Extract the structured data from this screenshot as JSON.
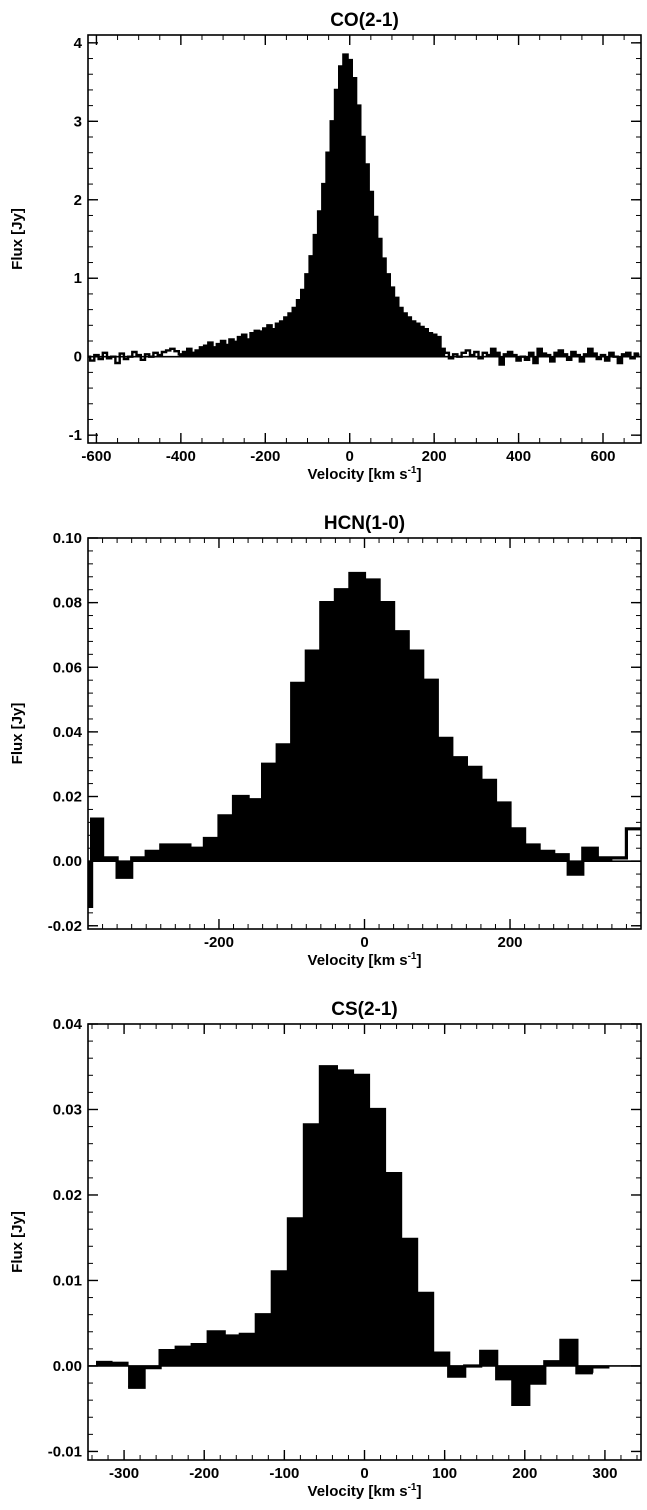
{
  "colors": {
    "inner_fill": "#c2e4ee",
    "wing_fill": "#6495ed",
    "negative_fill": "#ffff33",
    "outline": "#000000"
  },
  "chart_data": [
    {
      "type": "step",
      "title": "CO(2-1)",
      "xlabel": "Velocity [km s",
      "xlabel_sup": "-1",
      "xlabel_end": "]",
      "ylabel": "Flux [Jy]",
      "xlim": [
        -620,
        690
      ],
      "ylim": [
        -1.1,
        4.1
      ],
      "xticks": [
        -600,
        -400,
        -200,
        0,
        200,
        400,
        600
      ],
      "yticks": [
        -1,
        0,
        1,
        2,
        3,
        4
      ],
      "xminor": 50,
      "yminor": 0.2,
      "tick_decimals": 0,
      "inner_range": [
        -90,
        90
      ],
      "wing_range": [
        -330,
        220
      ],
      "negative_ranges": [
        [
          -400,
          -320
        ],
        [
          340,
          690
        ]
      ],
      "series": [
        {
          "x": [
            -620,
            -610,
            -600,
            -590,
            -580,
            -570,
            -560,
            -550,
            -540,
            -530,
            -520,
            -510,
            -500,
            -490,
            -480,
            -470,
            -460,
            -450,
            -440,
            -430,
            -420,
            -410,
            -400,
            -390,
            -380,
            -370,
            -360,
            -350,
            -340,
            -330,
            -320,
            -310,
            -300,
            -290,
            -280,
            -270,
            -260,
            -250,
            -240,
            -230,
            -220,
            -210,
            -200,
            -190,
            -180,
            -170,
            -160,
            -150,
            -140,
            -130,
            -120,
            -110,
            -100,
            -90,
            -80,
            -70,
            -60,
            -50,
            -40,
            -30,
            -20,
            -10,
            0,
            10,
            20,
            30,
            40,
            50,
            60,
            70,
            80,
            90,
            100,
            110,
            120,
            130,
            140,
            150,
            160,
            170,
            180,
            190,
            200,
            210,
            220,
            230,
            240,
            250,
            260,
            270,
            280,
            290,
            300,
            310,
            320,
            330,
            340,
            350,
            360,
            370,
            380,
            390,
            400,
            410,
            420,
            430,
            440,
            450,
            460,
            470,
            480,
            490,
            500,
            510,
            520,
            530,
            540,
            550,
            560,
            570,
            580,
            590,
            600,
            610,
            620,
            630,
            640,
            650,
            660,
            670,
            680
          ],
          "values": [
            0.0,
            -0.05,
            0.02,
            -0.03,
            0.05,
            -0.02,
            0.0,
            -0.08,
            0.04,
            -0.03,
            0.0,
            0.06,
            0.02,
            -0.04,
            0.03,
            0.0,
            0.05,
            0.02,
            0.06,
            0.08,
            0.1,
            0.07,
            0.03,
            0.06,
            0.1,
            0.05,
            0.08,
            0.12,
            0.14,
            0.18,
            0.12,
            0.16,
            0.2,
            0.15,
            0.22,
            0.19,
            0.25,
            0.28,
            0.22,
            0.3,
            0.33,
            0.32,
            0.36,
            0.4,
            0.35,
            0.42,
            0.45,
            0.5,
            0.55,
            0.62,
            0.72,
            0.85,
            1.05,
            1.28,
            1.55,
            1.85,
            2.2,
            2.6,
            3.0,
            3.4,
            3.7,
            3.85,
            3.78,
            3.55,
            3.2,
            2.8,
            2.45,
            2.1,
            1.78,
            1.5,
            1.25,
            1.05,
            0.88,
            0.75,
            0.62,
            0.55,
            0.5,
            0.45,
            0.42,
            0.38,
            0.35,
            0.3,
            0.28,
            0.25,
            0.1,
            0.05,
            -0.02,
            0.03,
            0.0,
            0.05,
            0.08,
            0.02,
            0.06,
            -0.02,
            0.05,
            0.02,
            0.1,
            0.05,
            -0.1,
            0.03,
            0.06,
            0.02,
            -0.05,
            0.0,
            -0.04,
            0.05,
            -0.08,
            0.1,
            0.04,
            0.02,
            -0.06,
            0.05,
            0.08,
            0.03,
            -0.04,
            0.06,
            0.02,
            -0.06,
            0.03,
            0.1,
            0.04,
            -0.03,
            0.02,
            -0.05,
            0.05,
            0.0,
            -0.08,
            0.03,
            0.05,
            -0.02,
            0.04
          ]
        }
      ]
    },
    {
      "type": "step",
      "title": "HCN(1-0)",
      "xlabel": "Velocity [km s",
      "xlabel_sup": "-1",
      "xlabel_end": "]",
      "ylabel": "Flux [Jy]",
      "xlim": [
        -380,
        380
      ],
      "ylim": [
        -0.021,
        0.1
      ],
      "xticks": [
        -200,
        0,
        200
      ],
      "yticks": [
        -0.02,
        0.0,
        0.02,
        0.04,
        0.06,
        0.08,
        0.1
      ],
      "xminor": 20,
      "yminor": 0.004,
      "tick_decimals": 2,
      "inner_range": [
        -92,
        92
      ],
      "wing_range": [
        -340,
        330
      ],
      "negative_ranges": [
        [
          -380,
          -340
        ]
      ],
      "series": [
        {
          "x": [
            -380,
            -370,
            -350,
            -330,
            -310,
            -290,
            -270,
            -250,
            -230,
            -210,
            -190,
            -170,
            -150,
            -130,
            -110,
            -90,
            -70,
            -50,
            -30,
            -10,
            10,
            30,
            50,
            70,
            90,
            110,
            130,
            150,
            170,
            190,
            210,
            230,
            250,
            270,
            290,
            310,
            330,
            350,
            370
          ],
          "values": [
            -0.014,
            0.013,
            0.001,
            -0.005,
            0.001,
            0.003,
            0.005,
            0.005,
            0.004,
            0.007,
            0.014,
            0.02,
            0.019,
            0.03,
            0.036,
            0.055,
            0.065,
            0.08,
            0.084,
            0.089,
            0.087,
            0.08,
            0.071,
            0.065,
            0.056,
            0.038,
            0.032,
            0.029,
            0.025,
            0.018,
            0.01,
            0.005,
            0.003,
            0.002,
            -0.004,
            0.004,
            0.001,
            0.001,
            0.01
          ]
        }
      ]
    },
    {
      "type": "step",
      "title": "CS(2-1)",
      "xlabel": "Velocity [km s",
      "xlabel_sup": "-1",
      "xlabel_end": "]",
      "ylabel": "Flux [Jy]",
      "xlim": [
        -345,
        345
      ],
      "ylim": [
        -0.011,
        0.04
      ],
      "xticks": [
        -300,
        -200,
        -100,
        0,
        100,
        200,
        300
      ],
      "yticks": [
        -0.01,
        0.0,
        0.01,
        0.02,
        0.03,
        0.04
      ],
      "xminor": 20,
      "yminor": 0.002,
      "tick_decimals": 2,
      "inner_range": [
        -90,
        90
      ],
      "wing_range": [
        -325,
        300
      ],
      "negative_ranges": [],
      "outline_range": [
        -290,
        280
      ],
      "series": [
        {
          "x": [
            -325,
            -305,
            -285,
            -265,
            -245,
            -225,
            -205,
            -185,
            -165,
            -145,
            -125,
            -105,
            -85,
            -65,
            -45,
            -25,
            -5,
            15,
            35,
            55,
            75,
            95,
            115,
            135,
            155,
            175,
            195,
            215,
            235,
            255,
            275,
            295
          ],
          "values": [
            0.0006,
            0.0005,
            -0.0025,
            -0.0002,
            0.0018,
            0.0022,
            0.0025,
            0.004,
            0.0035,
            0.0037,
            0.006,
            0.011,
            0.0172,
            0.0282,
            0.035,
            0.0345,
            0.034,
            0.03,
            0.0225,
            0.0148,
            0.0085,
            0.0015,
            -0.0012,
            0.0,
            0.0017,
            -0.0015,
            -0.0045,
            -0.002,
            0.0005,
            0.003,
            -0.0008,
            -0.0003
          ]
        }
      ]
    }
  ]
}
